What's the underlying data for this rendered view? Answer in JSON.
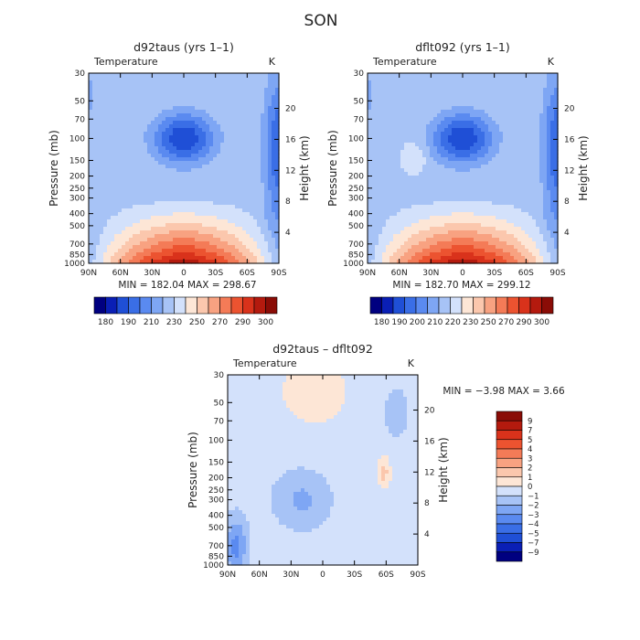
{
  "page": {
    "title": "SON"
  },
  "chart_data": [
    {
      "type": "contour",
      "title": "d92taus (yrs 1–1)",
      "subtitle_left": "Temperature",
      "subtitle_right": "K",
      "xlabel": "",
      "ylabel": "Pressure (mb)",
      "y2label": "Height (km)",
      "xticks": [
        "90N",
        "60N",
        "30N",
        "0",
        "30S",
        "60S",
        "90S"
      ],
      "yticks": [
        "30",
        "50",
        "70",
        "100",
        "150",
        "200",
        "250",
        "300",
        "400",
        "500",
        "700",
        "850",
        "1000"
      ],
      "y2ticks": [
        "20",
        "16",
        "12",
        "8",
        "4"
      ],
      "stats": "MIN = 182.04   MAX = 298.67",
      "min": 182.04,
      "max": 298.67,
      "colorbar": {
        "labels": [
          "180",
          "190",
          "210",
          "230",
          "250",
          "270",
          "290",
          "300"
        ],
        "colors": [
          "#000080",
          "#0a1fb5",
          "#1f4fd6",
          "#3a6ee6",
          "#5a8af0",
          "#7ea6f4",
          "#a7c3f6",
          "#d3e1fb",
          "#fde6d6",
          "#fbc7ad",
          "#f8a281",
          "#f47b57",
          "#ec5330",
          "#d9321b",
          "#b41a0e",
          "#8a0c06"
        ]
      }
    },
    {
      "type": "contour",
      "title": "dflt092 (yrs 1–1)",
      "subtitle_left": "Temperature",
      "subtitle_right": "K",
      "xlabel": "",
      "ylabel": "Pressure (mb)",
      "y2label": "Height (km)",
      "xticks": [
        "90N",
        "60N",
        "30N",
        "0",
        "30S",
        "60S",
        "90S"
      ],
      "yticks": [
        "30",
        "50",
        "70",
        "100",
        "150",
        "200",
        "250",
        "300",
        "400",
        "500",
        "700",
        "850",
        "1000"
      ],
      "y2ticks": [
        "20",
        "16",
        "12",
        "8",
        "4"
      ],
      "stats": "MIN = 182.70   MAX = 299.12",
      "min": 182.7,
      "max": 299.12,
      "colorbar": {
        "labels": [
          "180",
          "190",
          "200",
          "210",
          "220",
          "230",
          "250",
          "270",
          "290",
          "300"
        ],
        "colors": [
          "#000080",
          "#0a1fb5",
          "#1f4fd6",
          "#3a6ee6",
          "#5a8af0",
          "#7ea6f4",
          "#a7c3f6",
          "#d3e1fb",
          "#fde6d6",
          "#fbc7ad",
          "#f8a281",
          "#f47b57",
          "#ec5330",
          "#d9321b",
          "#b41a0e",
          "#8a0c06"
        ]
      }
    },
    {
      "type": "contour",
      "title": "d92taus – dflt092",
      "subtitle_left": "Temperature",
      "subtitle_right": "K",
      "xlabel": "",
      "ylabel": "Pressure (mb)",
      "y2label": "Height (km)",
      "xticks": [
        "90N",
        "60N",
        "30N",
        "0",
        "30S",
        "60S",
        "90S"
      ],
      "yticks": [
        "30",
        "50",
        "70",
        "100",
        "150",
        "200",
        "250",
        "300",
        "400",
        "500",
        "700",
        "850",
        "1000"
      ],
      "y2ticks": [
        "20",
        "16",
        "12",
        "8",
        "4"
      ],
      "stats": "MIN =   −3.98   MAX =     3.66",
      "min": -3.98,
      "max": 3.66,
      "colorbar": {
        "labels": [
          "9",
          "7",
          "5",
          "4",
          "3",
          "2",
          "1",
          "0",
          "−1",
          "−2",
          "−3",
          "−4",
          "−5",
          "−7",
          "−9"
        ],
        "colors": [
          "#8a0c06",
          "#b41a0e",
          "#d9321b",
          "#ec5330",
          "#f47b57",
          "#f8a281",
          "#fbc7ad",
          "#fde6d6",
          "#d3e1fb",
          "#a7c3f6",
          "#7ea6f4",
          "#5a8af0",
          "#3a6ee6",
          "#1f4fd6",
          "#0a1fb5",
          "#000080"
        ]
      }
    }
  ]
}
